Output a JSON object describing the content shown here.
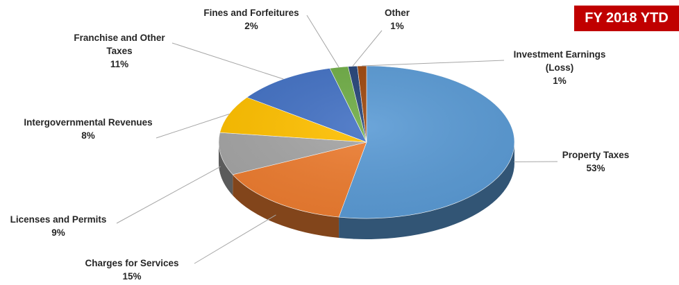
{
  "badge": {
    "text": "FY 2018 YTD",
    "color": "#c00000"
  },
  "chart_data": {
    "type": "pie",
    "title": "",
    "variant": "3d",
    "slices": [
      {
        "label": "Property Taxes",
        "value": 53,
        "pct": "53%",
        "color": "#5b9bd5"
      },
      {
        "label": "Charges for Services",
        "value": 15,
        "pct": "15%",
        "color": "#ed7d31"
      },
      {
        "label": "Licenses and Permits",
        "value": 9,
        "pct": "9%",
        "color": "#a5a5a5"
      },
      {
        "label": "Intergovernmental Revenues",
        "value": 8,
        "pct": "8%",
        "color": "#ffc000"
      },
      {
        "label": "Franchise and Other Taxes",
        "value": 11,
        "pct": "11%",
        "color": "#4472c4"
      },
      {
        "label": "Fines and Forfeitures",
        "value": 2,
        "pct": "2%",
        "color": "#70ad47"
      },
      {
        "label": "Other",
        "value": 1,
        "pct": "1%",
        "color": "#264478"
      },
      {
        "label": "Investment Earnings (Loss)",
        "value": 1,
        "pct": "1%",
        "color": "#9e480e"
      }
    ]
  }
}
